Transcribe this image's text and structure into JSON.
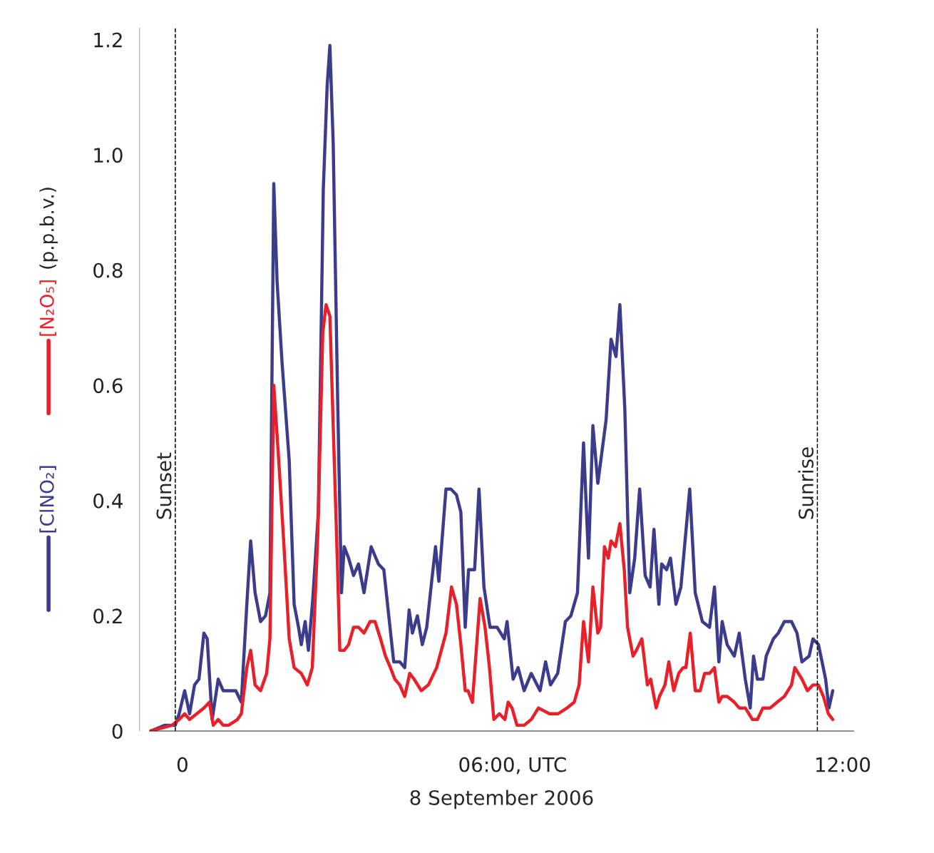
{
  "chart_data": {
    "type": "line",
    "xlabel": "8 September 2006",
    "ylabel": "(p.p.b.v.)",
    "xlim": [
      -0.6,
      12.2
    ],
    "ylim": [
      0,
      1.22
    ],
    "xticks": [
      {
        "value": 0,
        "label": "0"
      },
      {
        "value": 6,
        "label": "06:00, UTC"
      },
      {
        "value": 12,
        "label": "12:00"
      }
    ],
    "yticks": [
      {
        "value": 0,
        "label": "0"
      },
      {
        "value": 0.2,
        "label": "0.2"
      },
      {
        "value": 0.4,
        "label": "0.4"
      },
      {
        "value": 0.6,
        "label": "0.6"
      },
      {
        "value": 0.8,
        "label": "0.8"
      },
      {
        "value": 1.0,
        "label": "1.0"
      },
      {
        "value": 1.2,
        "label": "1.2"
      }
    ],
    "grid": false,
    "legend": "left",
    "marker": "none",
    "line_style": "solid",
    "ref_lines": [
      {
        "axis": "x",
        "value": -0.13,
        "label": "Sunset",
        "line_style": "dashed",
        "color": "#000000"
      },
      {
        "axis": "x",
        "value": 11.54,
        "label": "Sunrise",
        "line_style": "dashed",
        "color": "#000000"
      }
    ],
    "series": [
      {
        "name": "[ClNO₂]",
        "color": "#3c3c8c",
        "x": [
          -0.58,
          -0.32,
          -0.13,
          -0.06,
          0.04,
          0.13,
          0.22,
          0.3,
          0.39,
          0.45,
          0.54,
          0.65,
          0.74,
          0.84,
          0.97,
          1.07,
          1.17,
          1.24,
          1.32,
          1.42,
          1.51,
          1.59,
          1.66,
          1.72,
          1.81,
          1.94,
          2.03,
          2.11,
          2.16,
          2.23,
          2.29,
          2.37,
          2.47,
          2.56,
          2.63,
          2.68,
          2.74,
          2.82,
          2.89,
          2.94,
          3.02,
          3.11,
          3.2,
          3.3,
          3.43,
          3.56,
          3.66,
          3.75,
          3.84,
          3.95,
          4.04,
          4.12,
          4.18,
          4.27,
          4.36,
          4.44,
          4.53,
          4.6,
          4.66,
          4.79,
          4.88,
          4.98,
          5.06,
          5.14,
          5.2,
          5.31,
          5.39,
          5.48,
          5.59,
          5.72,
          5.85,
          5.9,
          6.01,
          6.1,
          6.21,
          6.34,
          6.5,
          6.6,
          6.69,
          6.82,
          6.96,
          7.06,
          7.18,
          7.29,
          7.38,
          7.46,
          7.55,
          7.7,
          7.79,
          7.88,
          7.95,
          8.04,
          8.13,
          8.22,
          8.31,
          8.41,
          8.5,
          8.57,
          8.66,
          8.71,
          8.8,
          8.87,
          8.97,
          9.06,
          9.22,
          9.32,
          9.45,
          9.58,
          9.67,
          9.75,
          9.81,
          9.9,
          10.03,
          10.12,
          10.23,
          10.32,
          10.38,
          10.45,
          10.55,
          10.61,
          10.74,
          10.83,
          10.94,
          11.07,
          11.17,
          11.26,
          11.39,
          11.46,
          11.56,
          11.69,
          11.75,
          11.82
        ],
        "values": [
          0.0,
          0.01,
          0.01,
          0.03,
          0.07,
          0.03,
          0.08,
          0.09,
          0.17,
          0.16,
          0.02,
          0.09,
          0.07,
          0.07,
          0.07,
          0.05,
          0.22,
          0.33,
          0.24,
          0.19,
          0.2,
          0.24,
          0.95,
          0.78,
          0.64,
          0.47,
          0.22,
          0.18,
          0.15,
          0.19,
          0.14,
          0.23,
          0.38,
          0.94,
          1.12,
          1.19,
          1.02,
          0.58,
          0.24,
          0.32,
          0.3,
          0.27,
          0.29,
          0.24,
          0.32,
          0.29,
          0.28,
          0.2,
          0.12,
          0.12,
          0.11,
          0.21,
          0.17,
          0.2,
          0.15,
          0.18,
          0.26,
          0.32,
          0.26,
          0.42,
          0.42,
          0.41,
          0.38,
          0.18,
          0.28,
          0.28,
          0.42,
          0.25,
          0.18,
          0.18,
          0.16,
          0.19,
          0.09,
          0.11,
          0.07,
          0.1,
          0.07,
          0.12,
          0.08,
          0.1,
          0.19,
          0.2,
          0.24,
          0.5,
          0.3,
          0.53,
          0.43,
          0.54,
          0.68,
          0.65,
          0.74,
          0.56,
          0.24,
          0.3,
          0.42,
          0.27,
          0.25,
          0.35,
          0.22,
          0.29,
          0.28,
          0.3,
          0.22,
          0.25,
          0.42,
          0.24,
          0.19,
          0.18,
          0.25,
          0.12,
          0.19,
          0.15,
          0.13,
          0.17,
          0.09,
          0.04,
          0.13,
          0.09,
          0.09,
          0.13,
          0.16,
          0.17,
          0.19,
          0.19,
          0.17,
          0.12,
          0.13,
          0.16,
          0.15,
          0.09,
          0.04,
          0.07
        ]
      },
      {
        "name": "[N₂O₅]",
        "color": "#e8202a",
        "x": [
          -0.58,
          -0.19,
          -0.06,
          0.04,
          0.13,
          0.26,
          0.39,
          0.49,
          0.56,
          0.65,
          0.74,
          0.84,
          1.0,
          1.07,
          1.17,
          1.24,
          1.32,
          1.42,
          1.53,
          1.59,
          1.66,
          1.75,
          1.84,
          1.94,
          2.03,
          2.16,
          2.27,
          2.36,
          2.46,
          2.55,
          2.61,
          2.68,
          2.74,
          2.82,
          2.86,
          2.94,
          3.02,
          3.11,
          3.2,
          3.3,
          3.41,
          3.5,
          3.6,
          3.69,
          3.78,
          3.86,
          3.95,
          4.04,
          4.13,
          4.21,
          4.34,
          4.47,
          4.62,
          4.79,
          4.89,
          4.98,
          5.06,
          5.14,
          5.19,
          5.27,
          5.41,
          5.5,
          5.58,
          5.66,
          5.76,
          5.86,
          5.92,
          5.99,
          6.08,
          6.21,
          6.34,
          6.47,
          6.67,
          6.83,
          6.99,
          7.12,
          7.21,
          7.29,
          7.38,
          7.46,
          7.55,
          7.6,
          7.67,
          7.74,
          7.79,
          7.87,
          7.95,
          8.03,
          8.09,
          8.19,
          8.25,
          8.35,
          8.45,
          8.51,
          8.61,
          8.67,
          8.77,
          8.84,
          8.93,
          9.02,
          9.1,
          9.15,
          9.23,
          9.32,
          9.41,
          9.49,
          9.58,
          9.67,
          9.75,
          9.81,
          9.9,
          10.03,
          10.12,
          10.23,
          10.36,
          10.45,
          10.55,
          10.68,
          10.81,
          10.94,
          11.07,
          11.13,
          11.26,
          11.36,
          11.46,
          11.56,
          11.65,
          11.74,
          11.82
        ],
        "values": [
          0.0,
          0.01,
          0.02,
          0.03,
          0.02,
          0.03,
          0.04,
          0.05,
          0.01,
          0.02,
          0.01,
          0.01,
          0.02,
          0.03,
          0.11,
          0.14,
          0.08,
          0.07,
          0.1,
          0.16,
          0.6,
          0.47,
          0.33,
          0.16,
          0.11,
          0.1,
          0.08,
          0.11,
          0.34,
          0.69,
          0.74,
          0.72,
          0.53,
          0.28,
          0.14,
          0.14,
          0.15,
          0.18,
          0.18,
          0.17,
          0.19,
          0.19,
          0.16,
          0.13,
          0.11,
          0.09,
          0.08,
          0.06,
          0.1,
          0.09,
          0.07,
          0.08,
          0.11,
          0.17,
          0.25,
          0.22,
          0.15,
          0.07,
          0.07,
          0.05,
          0.23,
          0.18,
          0.11,
          0.02,
          0.03,
          0.02,
          0.05,
          0.04,
          0.01,
          0.01,
          0.02,
          0.04,
          0.03,
          0.03,
          0.04,
          0.05,
          0.08,
          0.19,
          0.12,
          0.25,
          0.17,
          0.18,
          0.32,
          0.3,
          0.33,
          0.32,
          0.36,
          0.28,
          0.18,
          0.13,
          0.14,
          0.16,
          0.08,
          0.09,
          0.04,
          0.06,
          0.08,
          0.12,
          0.07,
          0.1,
          0.11,
          0.11,
          0.17,
          0.07,
          0.07,
          0.1,
          0.1,
          0.11,
          0.05,
          0.06,
          0.06,
          0.05,
          0.04,
          0.04,
          0.02,
          0.02,
          0.04,
          0.04,
          0.05,
          0.06,
          0.08,
          0.11,
          0.09,
          0.07,
          0.08,
          0.08,
          0.06,
          0.03,
          0.02
        ]
      }
    ]
  }
}
